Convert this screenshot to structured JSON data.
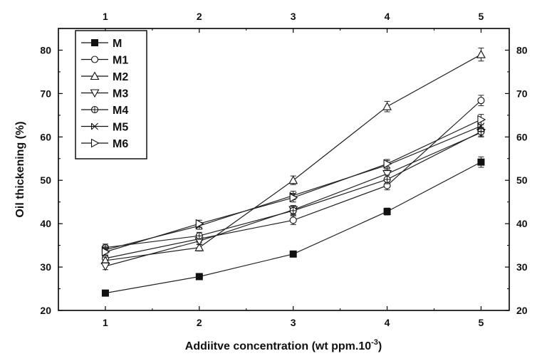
{
  "chart_data": {
    "type": "line",
    "title": "",
    "xlabel": "Addiitve concentration (wt ppm.10",
    "xlabel_superscript": "-3",
    "xlabel_suffix": ")",
    "ylabel": "Oil thickening (%)",
    "x": [
      1,
      2,
      3,
      4,
      5
    ],
    "xlim": [
      0.5,
      5.3
    ],
    "ylim": [
      20,
      85
    ],
    "x_ticks": [
      1,
      2,
      3,
      4,
      5
    ],
    "y_ticks": [
      20,
      30,
      40,
      50,
      60,
      70,
      80
    ],
    "grid": false,
    "legend_position": "top-left",
    "series": [
      {
        "name": "M",
        "marker": "square-filled",
        "values": [
          24,
          27.8,
          33,
          42.8,
          54.2
        ],
        "errors": [
          0,
          0,
          0,
          0.8,
          1.2
        ]
      },
      {
        "name": "M1",
        "marker": "circle",
        "values": [
          32,
          36.5,
          40.8,
          48.8,
          68.4
        ],
        "errors": [
          0.8,
          0.8,
          1,
          1,
          1.2
        ]
      },
      {
        "name": "M2",
        "marker": "triangle-up",
        "values": [
          31.5,
          34.5,
          50,
          67,
          79
        ],
        "errors": [
          0.8,
          0.8,
          1,
          1.2,
          1.5
        ]
      },
      {
        "name": "M3",
        "marker": "triangle-down",
        "values": [
          30.2,
          36,
          43.2,
          51.5,
          61
        ],
        "errors": [
          0.8,
          0.8,
          1,
          1,
          1
        ]
      },
      {
        "name": "M4",
        "marker": "circle-cross",
        "values": [
          34.5,
          37.2,
          43,
          50.2,
          61.2
        ],
        "errors": [
          0.8,
          0.8,
          1,
          1,
          1
        ]
      },
      {
        "name": "M5",
        "marker": "x-triangle",
        "values": [
          34,
          39.5,
          46.5,
          53.5,
          62.5
        ],
        "errors": [
          0.8,
          0.8,
          1,
          1,
          1.2
        ]
      },
      {
        "name": "M6",
        "marker": "triangle-right",
        "values": [
          33.5,
          40,
          46,
          53.8,
          64
        ],
        "errors": [
          0.8,
          0.8,
          1,
          1,
          1.2
        ]
      }
    ]
  }
}
